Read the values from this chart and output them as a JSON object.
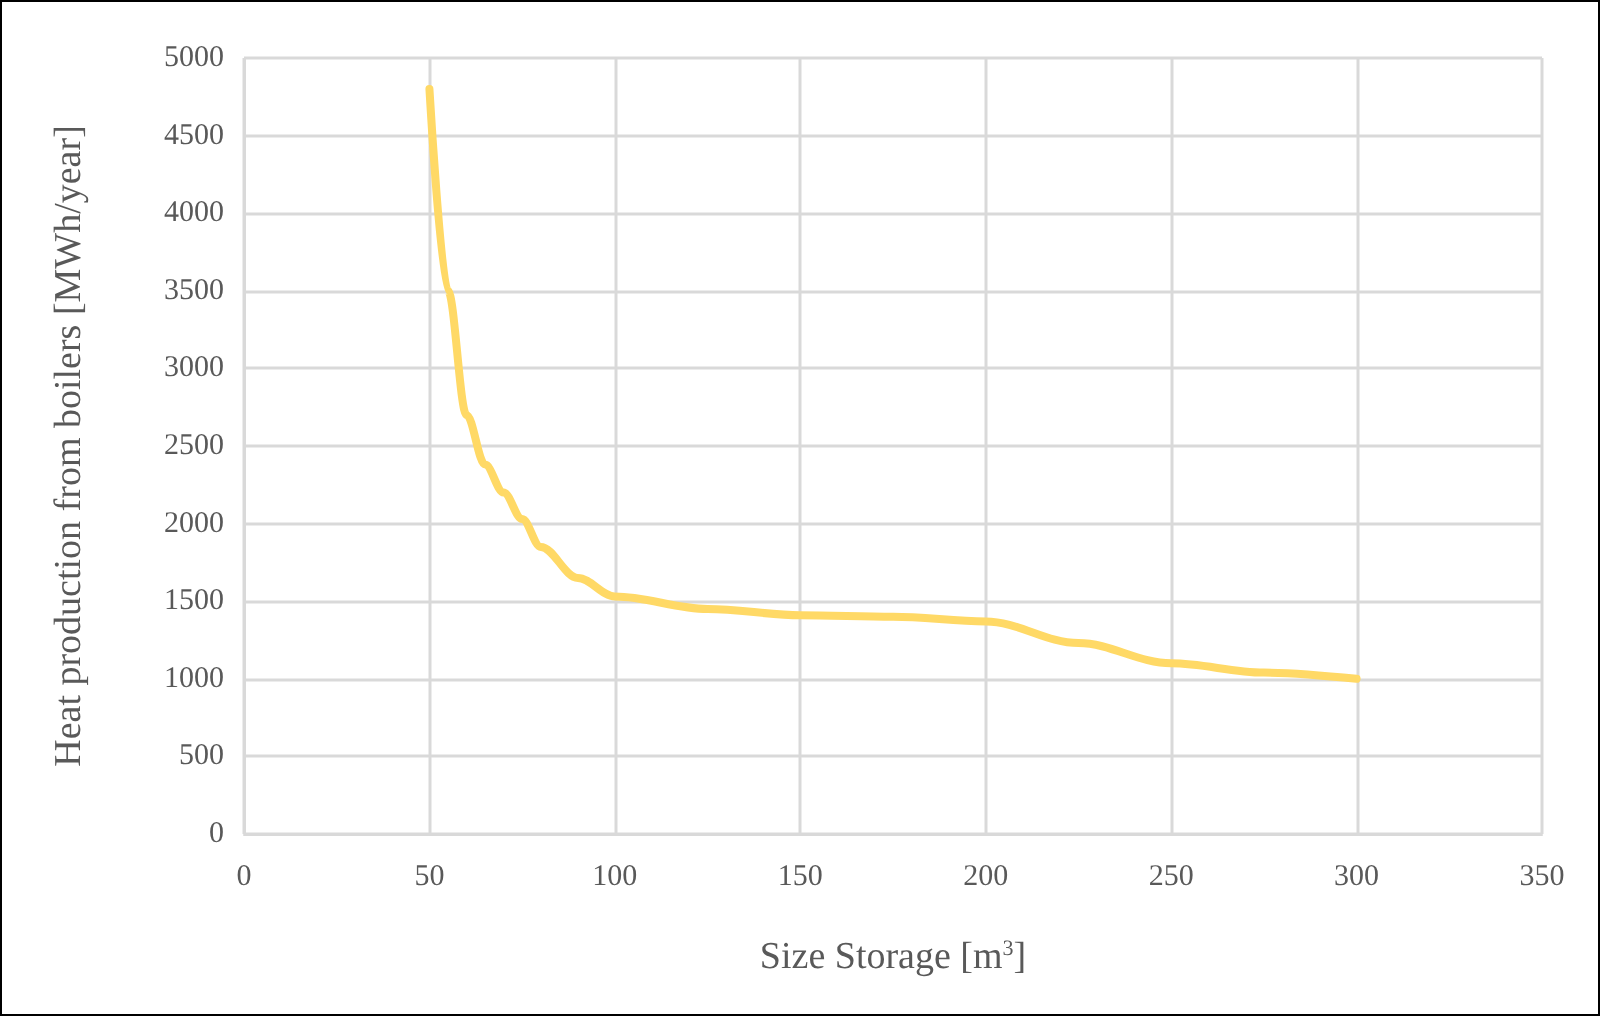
{
  "chart_data": {
    "type": "line",
    "xlabel": "Size Storage [m$^{3}$]",
    "ylabel": "Heat production from boilers [MWh/year]",
    "x": [
      50,
      55,
      60,
      65,
      70,
      75,
      80,
      90,
      100,
      125,
      150,
      175,
      200,
      225,
      250,
      275,
      300
    ],
    "series": [
      {
        "color": "#ffd966",
        "values": [
          4800,
          3500,
          2700,
          2380,
          2200,
          2030,
          1850,
          1650,
          1530,
          1450,
          1410,
          1400,
          1370,
          1230,
          1100,
          1040,
          1000
        ]
      }
    ],
    "xlim": [
      0,
      350
    ],
    "xticks": [
      0,
      50,
      100,
      150,
      200,
      250,
      300,
      350
    ],
    "ylim": [
      0,
      5000
    ],
    "yticks": [
      0,
      500,
      1000,
      1500,
      2000,
      2500,
      3000,
      3500,
      4000,
      4500,
      5000
    ],
    "grid": true,
    "marker": "none",
    "line_style": "solid"
  }
}
